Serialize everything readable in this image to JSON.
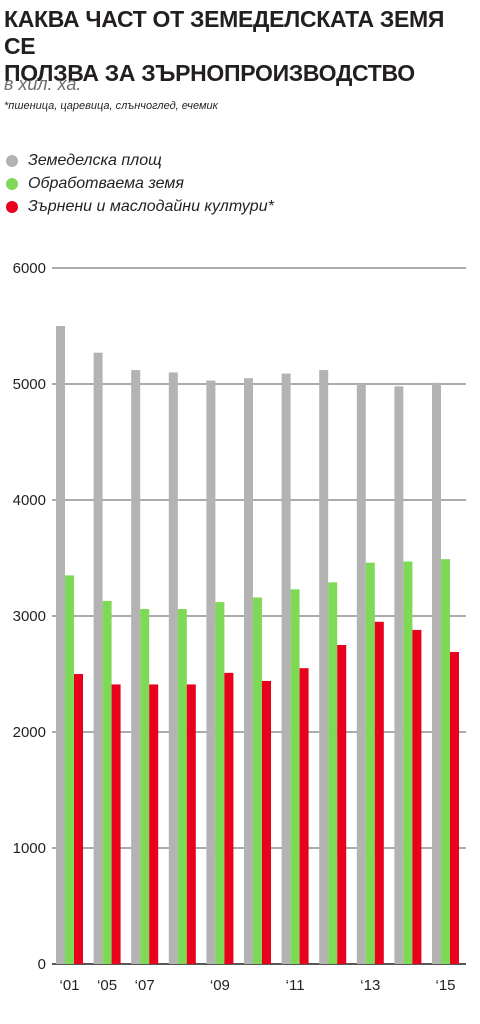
{
  "header": {
    "title_line1": "КАКВА ЧАСТ ОТ ЗЕМЕДЕЛСКАТА ЗЕМЯ СЕ",
    "title_line2": "ПОЛЗВА ЗА ЗЪРНОПРОИЗВОДСТВО",
    "subtitle": "в хил. ха.",
    "note": "*пшеница, царевица, слънчоглед, ечемик"
  },
  "chart_data": {
    "type": "bar",
    "categories": [
      "2001",
      "2005",
      "2007",
      "2008",
      "2009",
      "2010",
      "2011",
      "2012",
      "2013",
      "2014",
      "2015"
    ],
    "x_tick_labels": [
      "‘01",
      "‘05",
      "‘07",
      "",
      "‘09",
      "",
      "‘11",
      "",
      "‘13",
      "",
      "‘15"
    ],
    "series": [
      {
        "name": "Земеделска площ",
        "color": "#b3b3b3",
        "values": [
          5500,
          5270,
          5120,
          5100,
          5030,
          5050,
          5090,
          5120,
          5000,
          4980,
          5010
        ]
      },
      {
        "name": "Обработваема земя",
        "color": "#7ed957",
        "values": [
          3350,
          3130,
          3060,
          3060,
          3120,
          3160,
          3230,
          3290,
          3460,
          3470,
          3490
        ]
      },
      {
        "name": "Зърнени и маслодайни  култури*",
        "color": "#e8001c",
        "values": [
          2500,
          2410,
          2410,
          2410,
          2510,
          2440,
          2550,
          2750,
          2950,
          2880,
          2690
        ]
      }
    ],
    "ylim": [
      0,
      6000
    ],
    "yticks": [
      0,
      1000,
      2000,
      3000,
      4000,
      5000,
      6000
    ],
    "grid": true,
    "legend": "top-left"
  }
}
